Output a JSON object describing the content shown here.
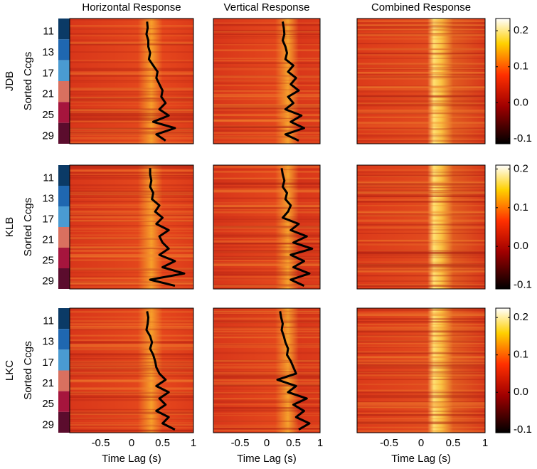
{
  "chart_data": {
    "type": "heatmap-grid",
    "xlim": [
      -1,
      1
    ],
    "xticks": [
      -0.5,
      0,
      0.5,
      1
    ],
    "category_colors": [
      "#0b3a66",
      "#1f67b0",
      "#4a9bd2",
      "#d9705f",
      "#a6153d",
      "#5b0c2d"
    ],
    "columns": [
      {
        "title": "Horizontal Response",
        "xlabel": "Time Lag (s)"
      },
      {
        "title": "Vertical Response",
        "xlabel": "Time Lag (s)"
      },
      {
        "title": "Combined Response",
        "xlabel": "Time Lag (s)"
      }
    ],
    "rows": [
      {
        "name": "JDB",
        "ylabel": "Sorted Ccgs",
        "categories": [
          "11",
          "13",
          "17",
          "21",
          "25",
          "29"
        ],
        "clim": [
          -0.114,
          0.234
        ],
        "cticks": [
          -0.1,
          {
            "value": 0,
            "label": "0.0"
          },
          0.1,
          0.2
        ],
        "traces": [
          [
            0.25,
            0.26,
            0.24,
            0.27,
            0.27,
            0.3,
            0.28,
            0.35,
            0.42,
            0.4,
            0.45,
            0.5,
            0.48,
            0.55,
            0.45,
            0.6,
            0.35,
            0.7,
            0.4,
            0.55
          ],
          [
            0.3,
            0.32,
            0.33,
            0.3,
            0.35,
            0.38,
            0.35,
            0.5,
            0.4,
            0.55,
            0.45,
            0.6,
            0.4,
            0.5,
            0.35,
            0.65,
            0.45,
            0.7,
            0.35,
            0.6
          ]
        ]
      },
      {
        "name": "KLB",
        "ylabel": "Sorted Ccgs",
        "categories": [
          "11",
          "13",
          "17",
          "21",
          "25",
          "29"
        ],
        "clim": [
          -0.11,
          0.21
        ],
        "cticks": [
          -0.1,
          {
            "value": 0,
            "label": "0.0"
          },
          0.1,
          0.2
        ],
        "traces": [
          [
            0.3,
            0.3,
            0.32,
            0.3,
            0.35,
            0.33,
            0.45,
            0.38,
            0.5,
            0.4,
            0.6,
            0.45,
            0.5,
            0.6,
            0.45,
            0.7,
            0.5,
            0.85,
            0.3,
            0.7
          ],
          [
            0.28,
            0.3,
            0.33,
            0.3,
            0.38,
            0.35,
            0.45,
            0.4,
            0.3,
            0.6,
            0.45,
            0.75,
            0.5,
            0.85,
            0.45,
            0.7,
            0.5,
            0.8,
            0.45,
            0.7
          ]
        ]
      },
      {
        "name": "LKC",
        "ylabel": "Sorted Ccgs",
        "categories": [
          "11",
          "13",
          "17",
          "21",
          "25",
          "29"
        ],
        "clim": [
          -0.108,
          0.225
        ],
        "cticks": [
          -0.1,
          {
            "value": 0,
            "label": "0.0"
          },
          0.1,
          0.2
        ],
        "traces": [
          [
            0.25,
            0.27,
            0.26,
            0.24,
            0.3,
            0.33,
            0.3,
            0.35,
            0.38,
            0.4,
            0.45,
            0.55,
            0.4,
            0.6,
            0.45,
            0.55,
            0.4,
            0.6,
            0.5,
            0.7
          ],
          [
            0.25,
            0.27,
            0.3,
            0.28,
            0.32,
            0.35,
            0.4,
            0.38,
            0.45,
            0.5,
            0.55,
            0.2,
            0.55,
            0.4,
            0.75,
            0.5,
            0.7,
            0.55,
            0.8,
            0.6
          ]
        ]
      }
    ]
  }
}
